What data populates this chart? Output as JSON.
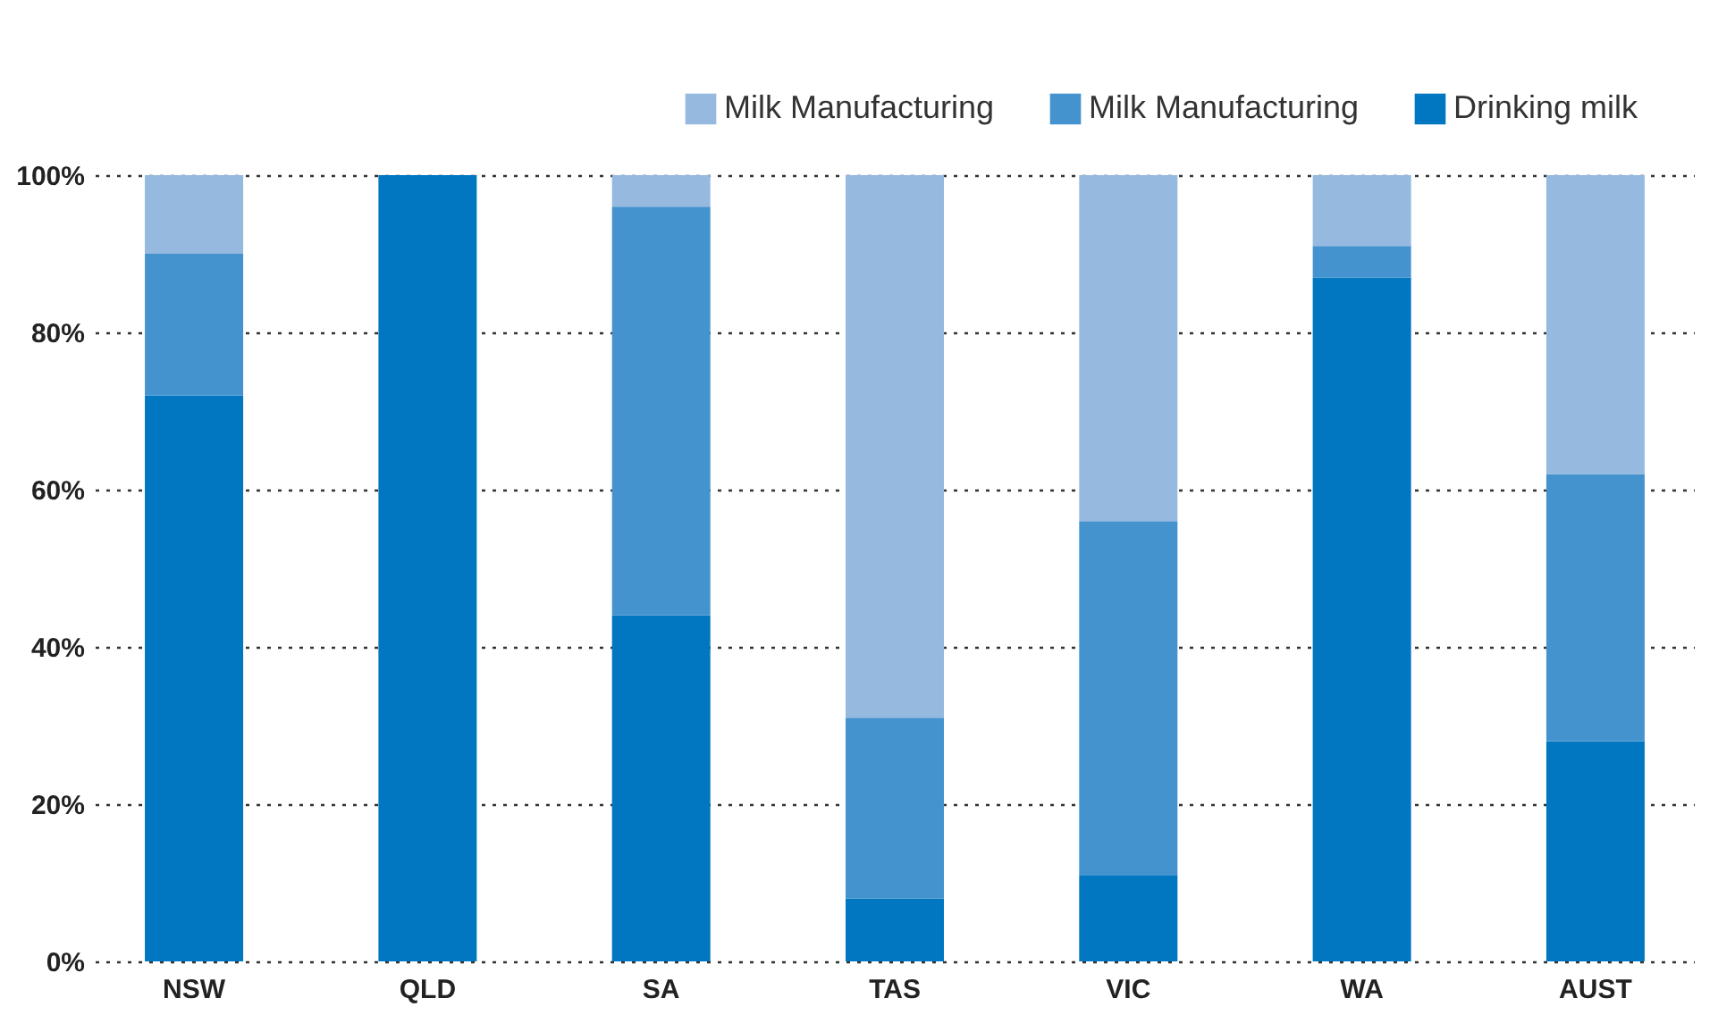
{
  "chart_data": {
    "type": "bar",
    "stacked": true,
    "categories": [
      "NSW",
      "QLD",
      "SA",
      "TAS",
      "VIC",
      "WA",
      "AUST"
    ],
    "series": [
      {
        "name": "Drinking milk",
        "color": "#0077c0",
        "values": [
          72,
          100,
          44,
          8,
          11,
          87,
          28
        ]
      },
      {
        "name": "Milk Manufacturing",
        "color": "#4493cf",
        "values": [
          18,
          0,
          52,
          23,
          45,
          4,
          34
        ]
      },
      {
        "name": "Milk Manufacturing",
        "color": "#96b9e0",
        "values": [
          10,
          0,
          4,
          69,
          44,
          9,
          38
        ]
      }
    ],
    "ylim": [
      0,
      100
    ],
    "yticks": [
      {
        "value": 0,
        "label": "0%"
      },
      {
        "value": 20,
        "label": "20%"
      },
      {
        "value": 40,
        "label": "40%"
      },
      {
        "value": 60,
        "label": "60%"
      },
      {
        "value": 80,
        "label": "80%"
      },
      {
        "value": 100,
        "label": "100%"
      }
    ],
    "grid": "y",
    "legend": "top right"
  }
}
